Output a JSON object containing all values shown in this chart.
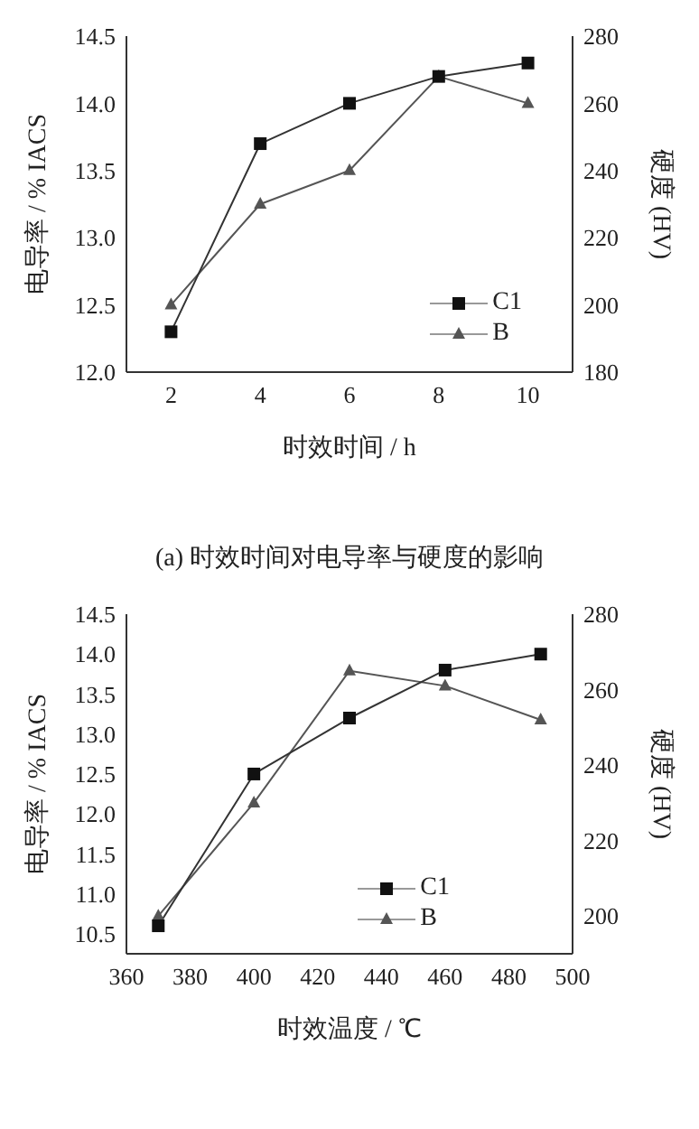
{
  "chart_data": [
    {
      "type": "line",
      "xlabel": "时效时间 / h",
      "ylabel": "电导率 / % IACS",
      "y2label": "硬度 (HV)",
      "annotations": [
        "(a) 时效时间对电导率与硬度的影响"
      ],
      "x": [
        2,
        4,
        6,
        8,
        10
      ],
      "xlim": [
        1,
        11
      ],
      "xticks": [
        2,
        4,
        6,
        8,
        10
      ],
      "ylim": [
        12.0,
        14.5
      ],
      "yticks": [
        {
          "value": 12.0,
          "label": "12.0"
        },
        {
          "value": 12.5,
          "label": "12.5"
        },
        {
          "value": 13.0,
          "label": "13.0"
        },
        {
          "value": 13.5,
          "label": "13.5"
        },
        {
          "value": 14.0,
          "label": "14.0"
        },
        {
          "value": 14.5,
          "label": "14.5"
        }
      ],
      "y2lim": [
        180,
        280
      ],
      "y2ticks": [
        180,
        200,
        220,
        240,
        260,
        280
      ],
      "grid": false,
      "legend": "bottom right",
      "series": [
        {
          "name": "C1",
          "color": "#333333",
          "marker": "square",
          "values": [
            12.3,
            13.7,
            14.0,
            14.2,
            14.3
          ]
        },
        {
          "name": "B",
          "color": "#555555",
          "marker": "triangle",
          "axis": "y2",
          "values": [
            200,
            230,
            240,
            268,
            260
          ]
        }
      ]
    },
    {
      "type": "line",
      "xlabel": "时效温度 / ℃",
      "ylabel": "电导率 / % IACS",
      "y2label": "硬度 (HV)",
      "x": [
        370,
        400,
        430,
        460,
        490
      ],
      "xlim": [
        360,
        500
      ],
      "xticks": [
        360,
        380,
        400,
        420,
        440,
        460,
        480,
        500
      ],
      "ylim": [
        10.25,
        14.5
      ],
      "yticks": [
        {
          "value": 10.5,
          "label": "10.5"
        },
        {
          "value": 11.0,
          "label": "11.0"
        },
        {
          "value": 11.5,
          "label": "11.5"
        },
        {
          "value": 12.0,
          "label": "12.0"
        },
        {
          "value": 12.5,
          "label": "12.5"
        },
        {
          "value": 13.0,
          "label": "13.0"
        },
        {
          "value": 13.5,
          "label": "13.5"
        },
        {
          "value": 14.0,
          "label": "14.0"
        },
        {
          "value": 14.5,
          "label": "14.5"
        }
      ],
      "y2lim": [
        190,
        280
      ],
      "y2ticks": [
        200,
        220,
        240,
        260,
        280
      ],
      "grid": false,
      "legend": "right",
      "series": [
        {
          "name": "C1",
          "color": "#333333",
          "marker": "square",
          "values": [
            10.6,
            12.5,
            13.2,
            13.8,
            14.0
          ]
        },
        {
          "name": "B",
          "color": "#555555",
          "marker": "triangle",
          "axis": "y2",
          "values": [
            200,
            230,
            265,
            261,
            252
          ]
        }
      ]
    }
  ]
}
